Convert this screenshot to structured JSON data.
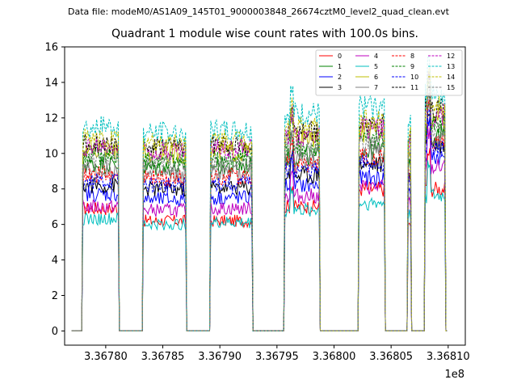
{
  "figure": {
    "suptitle": "Data file: modeM0/AS1A09_145T01_9000003848_26674cztM0_level2_quad_clean.evt"
  },
  "chart_data": {
    "type": "line",
    "title": "Quadrant 1 module wise count rates with 100.0s bins.",
    "xlabel": "",
    "ylabel": "",
    "x_offset_label": "1e8",
    "xlim": [
      3.367764,
      3.368115
    ],
    "ylim": [
      -0.8,
      16
    ],
    "x_ticks": [
      3.3678,
      3.36785,
      3.3679,
      3.36795,
      3.368,
      3.36805,
      3.3681
    ],
    "x_tick_labels": [
      "3.36780",
      "3.36785",
      "3.36790",
      "3.36795",
      "3.36800",
      "3.36805",
      "3.36810"
    ],
    "y_ticks": [
      0,
      2,
      4,
      6,
      8,
      10,
      12,
      14,
      16
    ],
    "y_tick_labels": [
      "0",
      "2",
      "4",
      "6",
      "8",
      "10",
      "12",
      "14",
      "16"
    ],
    "grid": false,
    "legend_position": "top-right",
    "active_intervals": [
      [
        3.36778,
        3.367812
      ],
      [
        3.367833,
        3.367871
      ],
      [
        3.367892,
        3.367929
      ],
      [
        3.367957,
        3.367988
      ],
      [
        3.368022,
        3.368045
      ],
      [
        3.368065,
        3.368068
      ],
      [
        3.36808,
        3.368098
      ]
    ],
    "series": [
      {
        "name": "0",
        "color": "#ff0000",
        "dash": "solid",
        "levels": [
          6.9,
          6.2,
          6.2,
          7.0,
          8.0,
          6.0,
          8.0
        ]
      },
      {
        "name": "1",
        "color": "#008000",
        "dash": "solid",
        "levels": [
          9.4,
          9.2,
          9.3,
          9.8,
          10.2,
          9.5,
          11.0
        ]
      },
      {
        "name": "2",
        "color": "#0000ff",
        "dash": "solid",
        "levels": [
          7.7,
          7.4,
          7.5,
          8.2,
          8.6,
          7.8,
          9.8
        ]
      },
      {
        "name": "3",
        "color": "#000000",
        "dash": "solid",
        "levels": [
          8.2,
          8.0,
          8.1,
          8.8,
          9.4,
          8.6,
          10.5
        ]
      },
      {
        "name": "4",
        "color": "#bf00bf",
        "dash": "solid",
        "levels": [
          7.0,
          6.8,
          6.9,
          7.6,
          8.1,
          7.2,
          9.2
        ]
      },
      {
        "name": "5",
        "color": "#00bfbf",
        "dash": "solid",
        "levels": [
          6.3,
          6.0,
          6.1,
          6.8,
          7.2,
          6.5,
          7.6
        ]
      },
      {
        "name": "6",
        "color": "#bfbf00",
        "dash": "solid",
        "levels": [
          10.2,
          10.0,
          10.1,
          10.8,
          11.2,
          10.4,
          12.0
        ]
      },
      {
        "name": "7",
        "color": "#808080",
        "dash": "solid",
        "levels": [
          9.0,
          8.8,
          8.9,
          9.6,
          10.0,
          9.2,
          10.8
        ]
      },
      {
        "name": "8",
        "color": "#ff0000",
        "dash": "dashed",
        "levels": [
          8.8,
          8.6,
          8.7,
          9.4,
          9.8,
          9.0,
          10.6
        ]
      },
      {
        "name": "9",
        "color": "#008000",
        "dash": "dashed",
        "levels": [
          9.8,
          9.6,
          9.7,
          10.4,
          10.8,
          10.0,
          11.6
        ]
      },
      {
        "name": "10",
        "color": "#0000ff",
        "dash": "dashed",
        "levels": [
          8.4,
          8.2,
          8.3,
          9.0,
          9.4,
          8.6,
          10.2
        ]
      },
      {
        "name": "11",
        "color": "#000000",
        "dash": "dashed",
        "levels": [
          10.6,
          10.4,
          10.5,
          11.2,
          11.6,
          10.8,
          12.4
        ]
      },
      {
        "name": "12",
        "color": "#bf00bf",
        "dash": "dashed",
        "levels": [
          10.4,
          10.2,
          10.3,
          11.0,
          11.4,
          10.6,
          12.2
        ]
      },
      {
        "name": "13",
        "color": "#00bfbf",
        "dash": "dashed",
        "levels": [
          11.5,
          11.2,
          11.3,
          12.2,
          12.6,
          11.6,
          13.5
        ]
      },
      {
        "name": "14",
        "color": "#bfbf00",
        "dash": "dashed",
        "levels": [
          10.8,
          10.6,
          10.7,
          11.4,
          11.8,
          11.0,
          12.8
        ]
      },
      {
        "name": "15",
        "color": "#808080",
        "dash": "dashed",
        "levels": [
          9.6,
          9.4,
          9.5,
          10.2,
          10.6,
          9.8,
          11.4
        ]
      }
    ]
  }
}
